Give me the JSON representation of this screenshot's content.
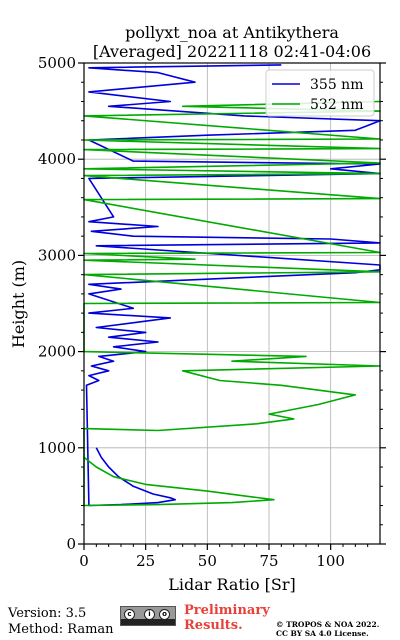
{
  "chart_data": {
    "type": "line",
    "title": "pollyxt_noa at Antikythera",
    "subtitle": "[Averaged] 20221118 02:41-04:06",
    "xlabel": "Lidar Ratio [Sr]",
    "ylabel": "Height (m)",
    "xlim": [
      0,
      120
    ],
    "ylim": [
      0,
      5000
    ],
    "xticks": [
      "0",
      "25",
      "50",
      "75",
      "100"
    ],
    "yticks": [
      "0",
      "1000",
      "2000",
      "3000",
      "4000",
      "5000"
    ],
    "grid": true,
    "legend_position": "top-right",
    "series": [
      {
        "name": "355 nm",
        "color": "#0000dd",
        "points": [
          [
            5,
            1000
          ],
          [
            7,
            900
          ],
          [
            10,
            800
          ],
          [
            14,
            700
          ],
          [
            20,
            600
          ],
          [
            28,
            520
          ],
          [
            35,
            480
          ],
          [
            37,
            460
          ],
          [
            30,
            430
          ],
          [
            15,
            410
          ],
          [
            2,
            400
          ],
          [
            1,
            1650
          ],
          [
            6,
            1700
          ],
          [
            2,
            1750
          ],
          [
            10,
            1800
          ],
          [
            3,
            1850
          ],
          [
            12,
            1900
          ],
          [
            6,
            1950
          ],
          [
            25,
            2000
          ],
          [
            12,
            2050
          ],
          [
            30,
            2100
          ],
          [
            10,
            2150
          ],
          [
            25,
            2200
          ],
          [
            5,
            2250
          ],
          [
            35,
            2350
          ],
          [
            2,
            2400
          ],
          [
            20,
            2450
          ],
          [
            2,
            2600
          ],
          [
            15,
            2650
          ],
          [
            2,
            2700
          ],
          [
            110,
            2820
          ],
          [
            120,
            2850
          ],
          [
            120,
            2900
          ],
          [
            5,
            3100
          ],
          [
            120,
            3130
          ],
          [
            100,
            3170
          ],
          [
            20,
            3200
          ],
          [
            3,
            3250
          ],
          [
            30,
            3300
          ],
          [
            2,
            3350
          ],
          [
            12,
            3400
          ],
          [
            2,
            3800
          ],
          [
            120,
            3850
          ],
          [
            100,
            3900
          ],
          [
            120,
            3950
          ],
          [
            20,
            3980
          ],
          [
            2,
            4200
          ],
          [
            50,
            4250
          ],
          [
            110,
            4300
          ],
          [
            120,
            4400
          ],
          [
            65,
            4450
          ],
          [
            10,
            4550
          ],
          [
            35,
            4600
          ],
          [
            2,
            4700
          ],
          [
            45,
            4800
          ],
          [
            30,
            4900
          ],
          [
            2,
            4950
          ],
          [
            80,
            4980
          ]
        ]
      },
      {
        "name": "532 nm",
        "color": "#00aa00",
        "points": [
          [
            0,
            900
          ],
          [
            5,
            800
          ],
          [
            12,
            700
          ],
          [
            25,
            620
          ],
          [
            50,
            550
          ],
          [
            77,
            460
          ],
          [
            60,
            430
          ],
          [
            30,
            410
          ],
          [
            0,
            400
          ],
          [
            0,
            1200
          ],
          [
            30,
            1180
          ],
          [
            70,
            1250
          ],
          [
            85,
            1300
          ],
          [
            75,
            1350
          ],
          [
            95,
            1450
          ],
          [
            110,
            1550
          ],
          [
            80,
            1650
          ],
          [
            55,
            1700
          ],
          [
            40,
            1800
          ],
          [
            120,
            1850
          ],
          [
            60,
            1900
          ],
          [
            90,
            1950
          ],
          [
            0,
            2000
          ],
          [
            0,
            2500
          ],
          [
            120,
            2510
          ],
          [
            0,
            2800
          ],
          [
            120,
            2830
          ],
          [
            0,
            2950
          ],
          [
            45,
            2960
          ],
          [
            0,
            3020
          ],
          [
            120,
            3030
          ],
          [
            0,
            3580
          ],
          [
            120,
            3590
          ],
          [
            0,
            3830
          ],
          [
            120,
            3850
          ],
          [
            0,
            3900
          ],
          [
            120,
            3960
          ],
          [
            0,
            4100
          ],
          [
            120,
            4110
          ],
          [
            0,
            4200
          ],
          [
            120,
            4210
          ],
          [
            0,
            4450
          ],
          [
            120,
            4500
          ],
          [
            40,
            4550
          ],
          [
            120,
            4600
          ]
        ]
      }
    ]
  },
  "footer": {
    "version": "Version: 3.5",
    "method": "Method: Raman",
    "preliminary_line1": "Preliminary",
    "preliminary_line2": "Results.",
    "copyright_line1": "© TROPOS & NOA 2022.",
    "copyright_line2": "CC BY SA 4.0 License."
  }
}
